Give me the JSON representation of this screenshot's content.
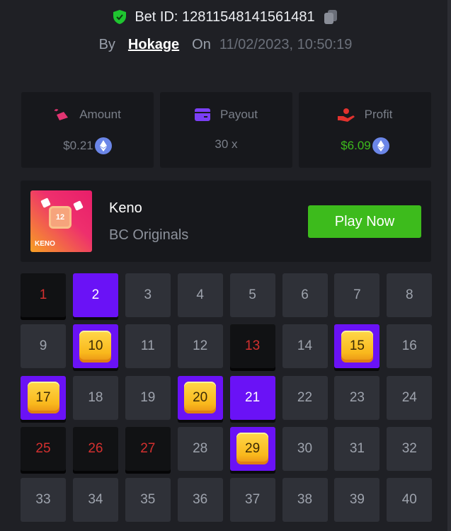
{
  "header": {
    "bet_id_label": "Bet ID: 12811548141561481",
    "by_label": "By",
    "username": "Hokage",
    "on_label": "On",
    "datetime": "11/02/2023, 10:50:19"
  },
  "stats": [
    {
      "label": "Amount",
      "value": "$0.21",
      "icon": "coins-icon",
      "currency_icon": "eth-icon",
      "value_color": "#7a7f89"
    },
    {
      "label": "Payout",
      "value": "30 x",
      "icon": "wallet-icon",
      "value_color": "#7a7f89"
    },
    {
      "label": "Profit",
      "value": "$6.09",
      "icon": "hand-user-icon",
      "currency_icon": "eth-icon",
      "value_color": "#3dbb1c"
    }
  ],
  "game": {
    "thumb_number": "12",
    "thumb_title": "KENO",
    "name": "Keno",
    "provider": "BC Originals",
    "play_label": "Play Now"
  },
  "colors": {
    "accent": "#6a12f6",
    "play": "#3dbb1c",
    "miss_text": "#d4302f",
    "success": "#1fc530"
  },
  "board": {
    "cells": [
      "1",
      "2",
      "3",
      "4",
      "5",
      "6",
      "7",
      "8",
      "9",
      "10",
      "11",
      "12",
      "13",
      "14",
      "15",
      "16",
      "17",
      "18",
      "19",
      "20",
      "21",
      "22",
      "23",
      "24",
      "25",
      "26",
      "27",
      "28",
      "29",
      "30",
      "31",
      "32",
      "33",
      "34",
      "35",
      "36",
      "37",
      "38",
      "39",
      "40"
    ],
    "missed": [
      1,
      13,
      25,
      26,
      27
    ],
    "selected": [
      2,
      21
    ],
    "hits": [
      10,
      15,
      17,
      20,
      29
    ]
  }
}
